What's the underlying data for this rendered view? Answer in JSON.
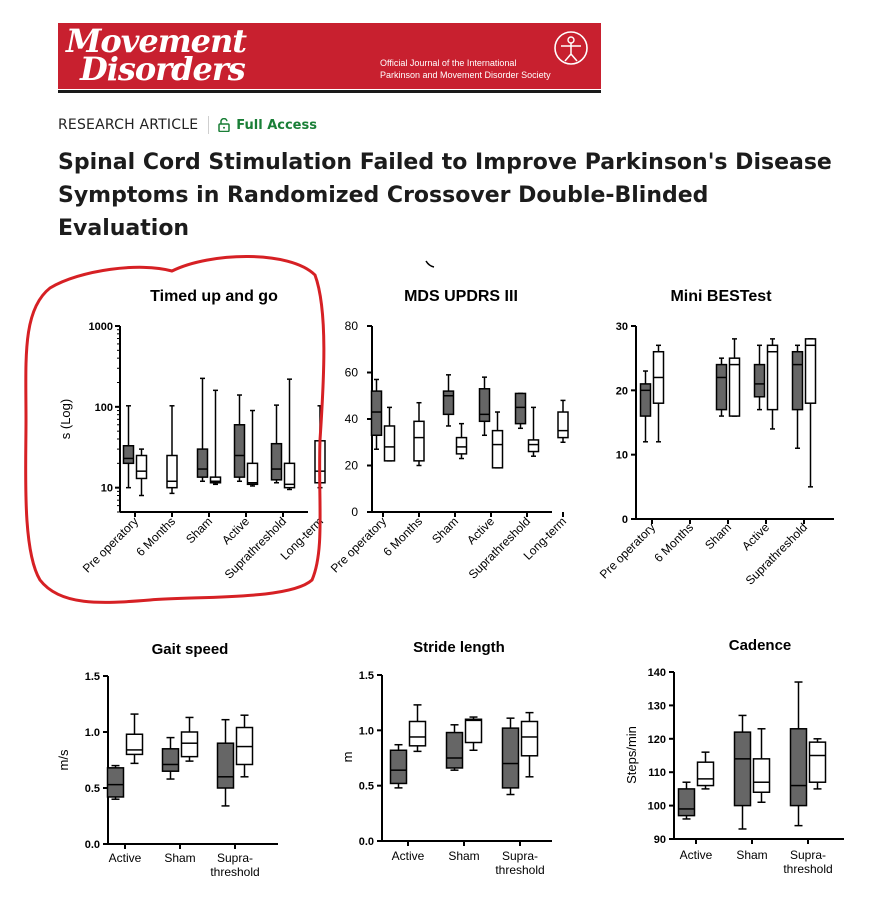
{
  "journal": {
    "logo_line1": "Movement",
    "logo_line2": "Disorders",
    "subtitle_line1": "Official Journal of the International",
    "subtitle_line2": "Parkinson and Movement Disorder Society",
    "brand_color": "#c8202f"
  },
  "article": {
    "type": "RESEARCH ARTICLE",
    "access": "Full Access",
    "access_color": "#1a7f37",
    "title": "Spinal Cord Stimulation Failed to Improve Parkinson's Disease Symptoms in Randomized Crossover Double-Blinded Evaluation"
  },
  "colors": {
    "filled_box": "#666666",
    "open_box": "#ffffff",
    "annotation": "#d62024"
  },
  "chart_data": [
    {
      "type": "boxplot",
      "title": "Timed up and go",
      "ylabel": "s (Log)",
      "yscale": "log",
      "ylim": [
        5,
        1000
      ],
      "ticks": [
        1000,
        100,
        10
      ],
      "tick_labels": [
        "1000",
        "100",
        "10"
      ],
      "categories": [
        "Pre operatory",
        "6 Months",
        "Sham",
        "Active",
        "Suprathreshold",
        "Long-term"
      ],
      "boxes": [
        {
          "cat": 0,
          "fill": "filled",
          "min": 10,
          "q1": 20,
          "median": 23,
          "q3": 33,
          "max": 103
        },
        {
          "cat": 0,
          "fill": "open",
          "min": 8,
          "q1": 13,
          "median": 16,
          "q3": 25,
          "max": 30
        },
        {
          "cat": 1,
          "fill": "open",
          "min": 8.5,
          "q1": 10,
          "median": 12,
          "q3": 25,
          "max": 103
        },
        {
          "cat": 2,
          "fill": "filled",
          "min": 12,
          "q1": 13.5,
          "median": 17,
          "q3": 30,
          "max": 225
        },
        {
          "cat": 2,
          "fill": "open",
          "min": 11,
          "q1": 11.5,
          "median": 12,
          "q3": 13.5,
          "max": 160
        },
        {
          "cat": 3,
          "fill": "filled",
          "min": 12,
          "q1": 13.5,
          "median": 25,
          "q3": 60,
          "max": 140
        },
        {
          "cat": 3,
          "fill": "open",
          "min": 10.5,
          "q1": 11,
          "median": 11.5,
          "q3": 20,
          "max": 90
        },
        {
          "cat": 4,
          "fill": "filled",
          "min": 11.5,
          "q1": 12.5,
          "median": 17,
          "q3": 35,
          "max": 105
        },
        {
          "cat": 4,
          "fill": "open",
          "min": 9.5,
          "q1": 10,
          "median": 11,
          "q3": 20,
          "max": 220
        },
        {
          "cat": 5,
          "fill": "open",
          "min": 10,
          "q1": 11.5,
          "median": 16,
          "q3": 38,
          "max": 103
        }
      ],
      "annotation": "hand-drawn red circle"
    },
    {
      "type": "boxplot",
      "title": "MDS UPDRS III",
      "ylim": [
        0,
        80
      ],
      "ticks": [
        0,
        20,
        40,
        60,
        80
      ],
      "tick_labels": [
        "0",
        "20",
        "40",
        "60",
        "80"
      ],
      "categories": [
        "Pre operatory",
        "6 Months",
        "Sham",
        "Active",
        "Suprathreshold",
        "Long-term"
      ],
      "boxes": [
        {
          "cat": 0,
          "fill": "filled",
          "min": 27,
          "q1": 33,
          "median": 43,
          "q3": 52,
          "max": 57
        },
        {
          "cat": 0,
          "fill": "open",
          "min": 22,
          "q1": 22,
          "median": 28,
          "q3": 37,
          "max": 45
        },
        {
          "cat": 1,
          "fill": "open",
          "min": 20,
          "q1": 22,
          "median": 32,
          "q3": 39,
          "max": 47
        },
        {
          "cat": 2,
          "fill": "filled",
          "min": 37,
          "q1": 42,
          "median": 50,
          "q3": 52,
          "max": 59
        },
        {
          "cat": 2,
          "fill": "open",
          "min": 23,
          "q1": 25,
          "median": 28,
          "q3": 32,
          "max": 38
        },
        {
          "cat": 3,
          "fill": "filled",
          "min": 33,
          "q1": 39,
          "median": 42,
          "q3": 53,
          "max": 58
        },
        {
          "cat": 3,
          "fill": "open",
          "min": 19,
          "q1": 19,
          "median": 29,
          "q3": 35,
          "max": 43
        },
        {
          "cat": 4,
          "fill": "filled",
          "min": 36,
          "q1": 38,
          "median": 45,
          "q3": 51,
          "max": 51
        },
        {
          "cat": 4,
          "fill": "open",
          "min": 24,
          "q1": 26,
          "median": 29,
          "q3": 31,
          "max": 45
        },
        {
          "cat": 5,
          "fill": "open",
          "min": 30,
          "q1": 32,
          "median": 35,
          "q3": 43,
          "max": 48
        }
      ]
    },
    {
      "type": "boxplot",
      "title": "Mini BESTest",
      "ylim": [
        0,
        30
      ],
      "ticks": [
        0,
        10,
        20,
        30
      ],
      "tick_labels": [
        "0",
        "10",
        "20",
        "30"
      ],
      "categories": [
        "Pre operatory",
        "6 Months",
        "Sham",
        "Active",
        "Suprathreshold"
      ],
      "boxes": [
        {
          "cat": 0,
          "fill": "filled",
          "min": 12,
          "q1": 16,
          "median": 20,
          "q3": 21,
          "max": 23
        },
        {
          "cat": 0,
          "fill": "open",
          "min": 12,
          "q1": 18,
          "median": 22,
          "q3": 26,
          "max": 27
        },
        {
          "cat": 2,
          "fill": "filled",
          "min": 16,
          "q1": 17,
          "median": 22,
          "q3": 24,
          "max": 25
        },
        {
          "cat": 2,
          "fill": "open",
          "min": 16,
          "q1": 16,
          "median": 24,
          "q3": 25,
          "max": 28
        },
        {
          "cat": 3,
          "fill": "filled",
          "min": 17,
          "q1": 19,
          "median": 21,
          "q3": 24,
          "max": 27
        },
        {
          "cat": 3,
          "fill": "open",
          "min": 14,
          "q1": 17,
          "median": 26,
          "q3": 27,
          "max": 28
        },
        {
          "cat": 4,
          "fill": "filled",
          "min": 11,
          "q1": 17,
          "median": 24,
          "q3": 26,
          "max": 27
        },
        {
          "cat": 4,
          "fill": "open",
          "min": 5,
          "q1": 18,
          "median": 27,
          "q3": 28,
          "max": 28
        }
      ]
    },
    {
      "type": "boxplot",
      "title": "Gait speed",
      "ylabel": "m/s",
      "ylim": [
        0,
        1.5
      ],
      "ticks": [
        0,
        0.5,
        1.0,
        1.5
      ],
      "tick_labels": [
        "0.0",
        "0.5",
        "1.0",
        "1.5"
      ],
      "categories": [
        "Active",
        "Sham",
        "Supra-threshold"
      ],
      "boxes": [
        {
          "cat": 0,
          "fill": "filled",
          "min": 0.4,
          "q1": 0.42,
          "median": 0.53,
          "q3": 0.68,
          "max": 0.7
        },
        {
          "cat": 0,
          "fill": "open",
          "min": 0.72,
          "q1": 0.8,
          "median": 0.84,
          "q3": 0.98,
          "max": 1.16
        },
        {
          "cat": 1,
          "fill": "filled",
          "min": 0.58,
          "q1": 0.65,
          "median": 0.71,
          "q3": 0.85,
          "max": 0.95
        },
        {
          "cat": 1,
          "fill": "open",
          "min": 0.74,
          "q1": 0.78,
          "median": 0.9,
          "q3": 1.0,
          "max": 1.13
        },
        {
          "cat": 2,
          "fill": "filled",
          "min": 0.34,
          "q1": 0.5,
          "median": 0.6,
          "q3": 0.9,
          "max": 1.11
        },
        {
          "cat": 2,
          "fill": "open",
          "min": 0.6,
          "q1": 0.71,
          "median": 0.87,
          "q3": 1.04,
          "max": 1.15
        }
      ]
    },
    {
      "type": "boxplot",
      "title": "Stride length",
      "ylabel": "m",
      "ylim": [
        0,
        1.5
      ],
      "ticks": [
        0,
        0.5,
        1.0,
        1.5
      ],
      "tick_labels": [
        "0.0",
        "0.5",
        "1.0",
        "1.5"
      ],
      "categories": [
        "Active",
        "Sham",
        "Supra-threshold"
      ],
      "boxes": [
        {
          "cat": 0,
          "fill": "filled",
          "min": 0.48,
          "q1": 0.52,
          "median": 0.64,
          "q3": 0.82,
          "max": 0.87
        },
        {
          "cat": 0,
          "fill": "open",
          "min": 0.81,
          "q1": 0.86,
          "median": 0.94,
          "q3": 1.08,
          "max": 1.23
        },
        {
          "cat": 1,
          "fill": "filled",
          "min": 0.64,
          "q1": 0.66,
          "median": 0.75,
          "q3": 0.98,
          "max": 1.05
        },
        {
          "cat": 1,
          "fill": "open",
          "min": 0.82,
          "q1": 0.89,
          "median": 1.09,
          "q3": 1.1,
          "max": 1.12
        },
        {
          "cat": 2,
          "fill": "filled",
          "min": 0.42,
          "q1": 0.48,
          "median": 0.7,
          "q3": 1.02,
          "max": 1.11
        },
        {
          "cat": 2,
          "fill": "open",
          "min": 0.58,
          "q1": 0.77,
          "median": 0.94,
          "q3": 1.08,
          "max": 1.16
        }
      ]
    },
    {
      "type": "boxplot",
      "title": "Cadence",
      "ylabel": "Steps/min",
      "ylim": [
        90,
        140
      ],
      "ticks": [
        90,
        100,
        110,
        120,
        130,
        140
      ],
      "tick_labels": [
        "90",
        "100",
        "110",
        "120",
        "130",
        "140"
      ],
      "categories": [
        "Active",
        "Sham",
        "Supra-threshold"
      ],
      "boxes": [
        {
          "cat": 0,
          "fill": "filled",
          "min": 96,
          "q1": 97,
          "median": 99,
          "q3": 105,
          "max": 107
        },
        {
          "cat": 0,
          "fill": "open",
          "min": 105,
          "q1": 106,
          "median": 108,
          "q3": 113,
          "max": 116
        },
        {
          "cat": 1,
          "fill": "filled",
          "min": 93,
          "q1": 100,
          "median": 114,
          "q3": 122,
          "max": 127
        },
        {
          "cat": 1,
          "fill": "open",
          "min": 101,
          "q1": 104,
          "median": 107,
          "q3": 114,
          "max": 123
        },
        {
          "cat": 2,
          "fill": "filled",
          "min": 94,
          "q1": 100,
          "median": 106,
          "q3": 123,
          "max": 137
        },
        {
          "cat": 2,
          "fill": "open",
          "min": 105,
          "q1": 107,
          "median": 115,
          "q3": 119,
          "max": 120
        }
      ]
    }
  ]
}
